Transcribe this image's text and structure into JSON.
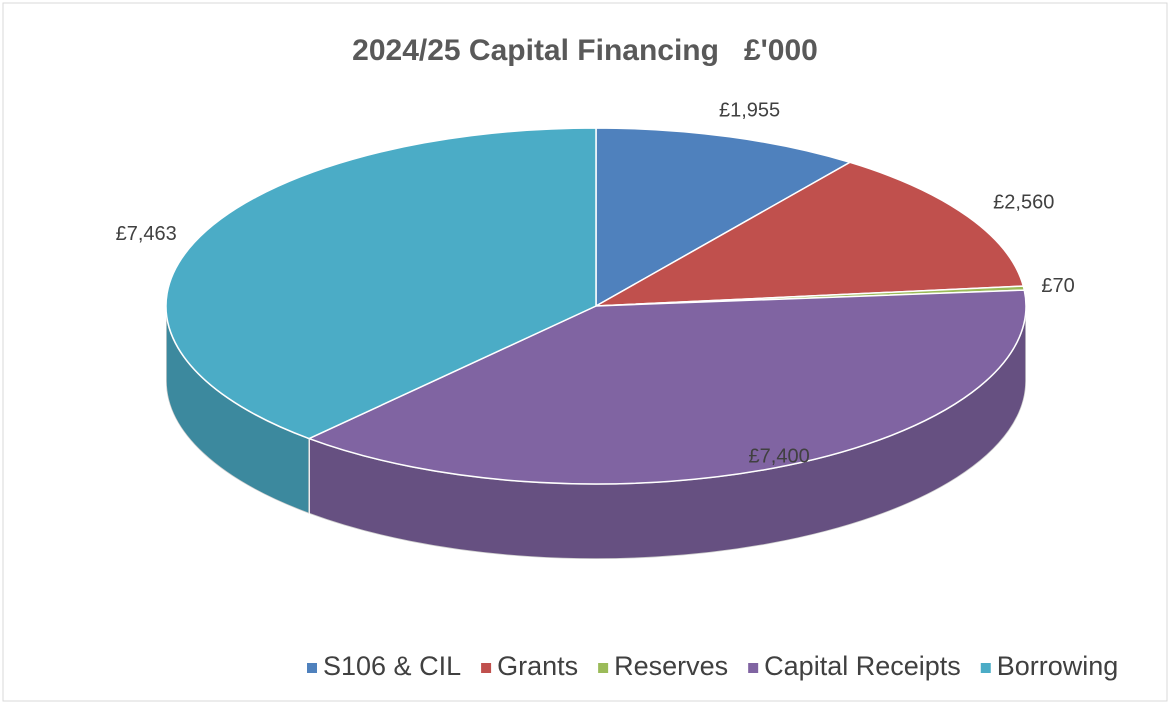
{
  "chart_data": {
    "type": "pie",
    "title": "2024/25 Capital Financing   £'000",
    "categories": [
      "S106 & CIL",
      "Grants",
      "Reserves",
      "Capital Receipts",
      "Borrowing"
    ],
    "values": [
      1955,
      2560,
      70,
      7400,
      7463
    ],
    "value_labels": [
      "£1,955",
      "£2,560",
      "£70",
      "£7,400",
      "£7,463"
    ],
    "colors": [
      "#4f81bd",
      "#c0504d",
      "#9bbb59",
      "#8064a2",
      "#4bacc6"
    ],
    "legend": "bottom"
  }
}
